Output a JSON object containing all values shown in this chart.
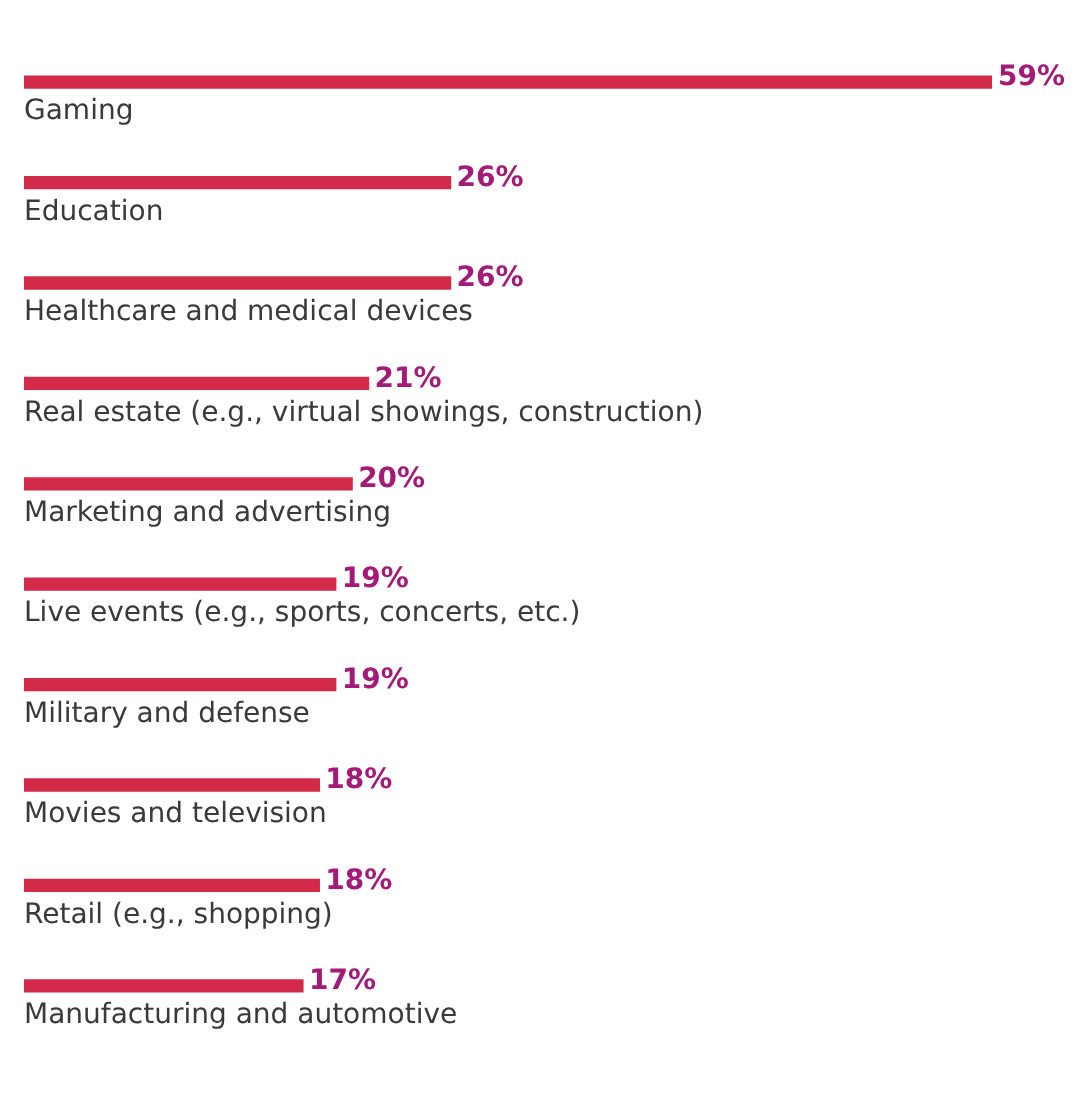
{
  "chart_data": {
    "type": "bar",
    "orientation": "horizontal",
    "categories": [
      "Gaming",
      "Education",
      "Healthcare and medical devices",
      "Real estate (e.g., virtual showings, construction)",
      "Marketing and advertising",
      "Live events (e.g., sports, concerts, etc.)",
      "Military and defense",
      "Movies and television",
      "Retail (e.g., shopping)",
      "Manufacturing and automotive"
    ],
    "values": [
      59,
      26,
      26,
      21,
      20,
      19,
      19,
      18,
      18,
      17
    ],
    "color": "#d42a4a",
    "value_labels": [
      "59%",
      "26%",
      "26%",
      "21%",
      "20%",
      "19%",
      "19%",
      "18%",
      "18%",
      "17%"
    ]
  }
}
